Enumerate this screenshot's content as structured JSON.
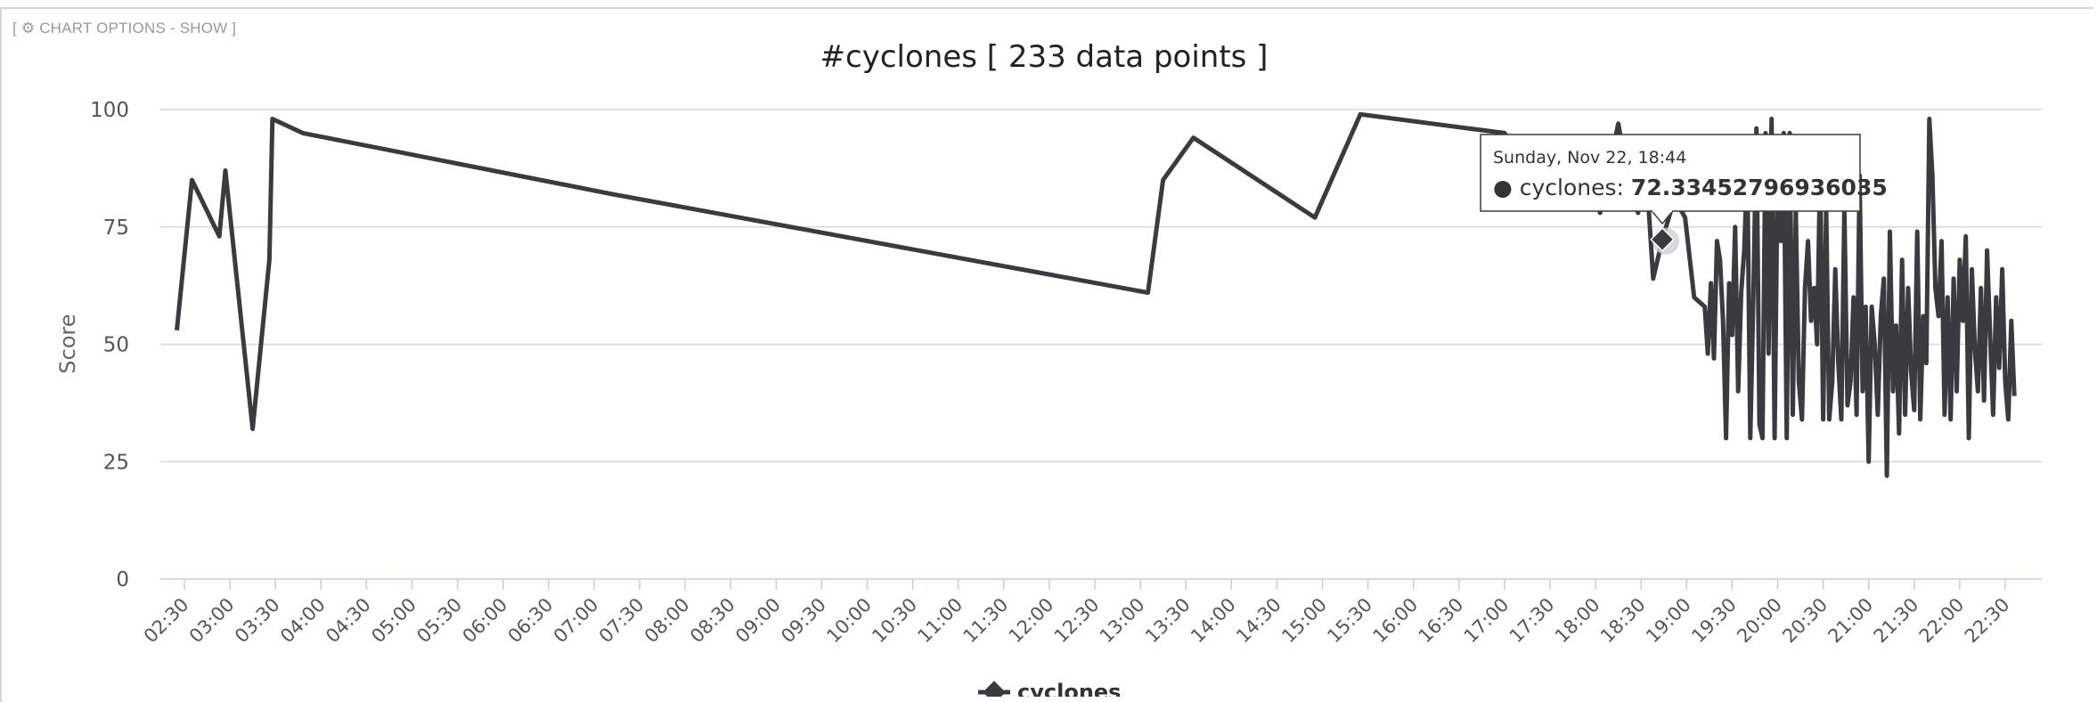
{
  "options_toggle": {
    "label": "[ ⚙ CHART OPTIONS - SHOW ]",
    "icon": "gear-icon"
  },
  "chart_data": {
    "type": "line",
    "title": "#cyclones [ 233 data points ]",
    "xlabel": "",
    "ylabel": "Score",
    "ylim": [
      0,
      100
    ],
    "yticks": [
      0,
      25,
      50,
      75,
      100
    ],
    "xticks": [
      "02:30",
      "03:00",
      "03:30",
      "04:00",
      "04:30",
      "05:00",
      "05:30",
      "06:00",
      "06:30",
      "07:00",
      "07:30",
      "08:00",
      "08:30",
      "09:00",
      "09:30",
      "10:00",
      "10:30",
      "11:00",
      "11:30",
      "12:00",
      "12:30",
      "13:00",
      "13:30",
      "14:00",
      "14:30",
      "15:00",
      "15:30",
      "16:00",
      "16:30",
      "17:00",
      "17:30",
      "18:00",
      "18:30",
      "19:00",
      "19:30",
      "20:00",
      "20:30",
      "21:00",
      "21:30",
      "22:00",
      "22:30"
    ],
    "x_unit": "time",
    "grid": true,
    "legend_position": "bottom-center",
    "line_color": "#3b3b3f",
    "series": [
      {
        "name": "cyclones",
        "x": [
          "02:25",
          "02:35",
          "02:53",
          "02:57",
          "03:15",
          "03:26",
          "03:28",
          "03:48",
          "07:12",
          "13:05",
          "13:15",
          "13:35",
          "14:55",
          "15:25",
          "17:00",
          "17:10",
          "17:35",
          "17:52",
          "18:03",
          "18:15",
          "18:22",
          "18:28",
          "18:32",
          "18:38",
          "18:44",
          "18:52",
          "18:59",
          "19:05",
          "19:12",
          "19:14",
          "19:16",
          "19:18",
          "19:20",
          "19:22",
          "19:24",
          "19:26",
          "19:28",
          "19:30",
          "19:32",
          "19:34",
          "19:36",
          "19:38",
          "19:40",
          "19:42",
          "19:44",
          "19:46",
          "19:48",
          "19:50",
          "19:52",
          "19:54",
          "19:56",
          "19:58",
          "20:00",
          "20:02",
          "20:04",
          "20:06",
          "20:08",
          "20:10",
          "20:12",
          "20:14",
          "20:16",
          "20:18",
          "20:20",
          "20:22",
          "20:24",
          "20:26",
          "20:28",
          "20:30",
          "20:32",
          "20:34",
          "20:36",
          "20:38",
          "20:40",
          "20:42",
          "20:44",
          "20:46",
          "20:48",
          "20:50",
          "20:52",
          "20:54",
          "20:56",
          "20:58",
          "21:00",
          "21:02",
          "21:04",
          "21:06",
          "21:08",
          "21:10",
          "21:12",
          "21:14",
          "21:16",
          "21:18",
          "21:20",
          "21:22",
          "21:24",
          "21:26",
          "21:28",
          "21:30",
          "21:32",
          "21:34",
          "21:36",
          "21:38",
          "21:40",
          "21:42",
          "21:44",
          "21:46",
          "21:48",
          "21:50",
          "21:52",
          "21:54",
          "21:56",
          "21:58",
          "22:00",
          "22:02",
          "22:04",
          "22:06",
          "22:08",
          "22:10",
          "22:12",
          "22:14",
          "22:16",
          "22:18",
          "22:20",
          "22:22",
          "22:24",
          "22:26",
          "22:28",
          "22:30",
          "22:32",
          "22:34",
          "22:36"
        ],
        "values": [
          53,
          85,
          73,
          87,
          32,
          68,
          98,
          95,
          82,
          61,
          85,
          94,
          77,
          99,
          95,
          91,
          85,
          93,
          78,
          97,
          84,
          78,
          94,
          64,
          72.33,
          81,
          77,
          60,
          58,
          48,
          63,
          47,
          72,
          68,
          55,
          30,
          63,
          52,
          75,
          40,
          61,
          70,
          88,
          30,
          60,
          96,
          33,
          30,
          95,
          48,
          98,
          30,
          88,
          72,
          95,
          30,
          95,
          35,
          78,
          42,
          34,
          62,
          72,
          55,
          62,
          50,
          88,
          34,
          79,
          34,
          42,
          66,
          46,
          34,
          79,
          37,
          42,
          60,
          35,
          86,
          40,
          58,
          25,
          58,
          50,
          35,
          56,
          64,
          22,
          74,
          40,
          54,
          31,
          68,
          35,
          62,
          44,
          36,
          74,
          34,
          56,
          46,
          98,
          86,
          62,
          56,
          72,
          35,
          60,
          34,
          64,
          40,
          68,
          55,
          73,
          30,
          66,
          49,
          40,
          62,
          38,
          70,
          52,
          35,
          60,
          45,
          66,
          42,
          34,
          55,
          39
        ]
      }
    ],
    "tooltip": {
      "date": "Sunday, Nov 22, 18:44",
      "series": "cyclones",
      "value": "72.33452796936035",
      "x": "18:44"
    }
  }
}
